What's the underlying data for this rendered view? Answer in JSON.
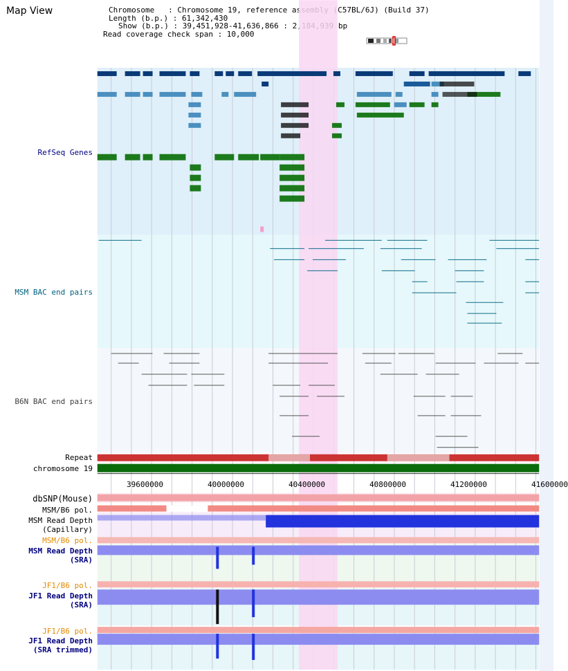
{
  "header": {
    "title": "Map View",
    "chromosome_line": "Chromosome   : Chromosome 19, reference assembly (C57BL/6J) (Build 37)",
    "length_line": "Length (b.p.) : 61,342,430",
    "show_line": "Show (b.p.) : 39,451,928-41,636,866 : 2,184,939 bp",
    "coverage_line": "Read coverage check span : 10,000"
  },
  "tracks": {
    "refseq": "RefSeq Genes",
    "msm_bac": "MSM BAC end pairs",
    "b6n_bac": "B6N BAC end pairs",
    "repeat": "Repeat",
    "chromosome": "chromosome 19",
    "dbsnp": "dbSNP(Mouse)",
    "msm_pol1": "MSM/B6 pol.",
    "msm_depth_cap": "MSM Read Depth\n(Capillary)",
    "msm_pol2": "MSM/B6 pol.",
    "msm_depth_sra": "MSM Read Depth\n(SRA)",
    "jf1_pol1": "JF1/B6 pol.",
    "jf1_depth_sra": "JF1 Read Depth\n(SRA)",
    "jf1_pol2": "JF1/B6 pol.",
    "jf1_depth_trim": "JF1 Read Depth\n(SRA trimmed)"
  },
  "axis": {
    "ticks": [
      "39600000",
      "40000000",
      "40400000",
      "40800000",
      "41200000",
      "41600000"
    ]
  },
  "colors": {
    "refseq_label": "#000080",
    "msm_label": "#006080",
    "b6n_label": "#404040",
    "orange_label": "#e08a00",
    "highlight": "#f9d7f2"
  }
}
